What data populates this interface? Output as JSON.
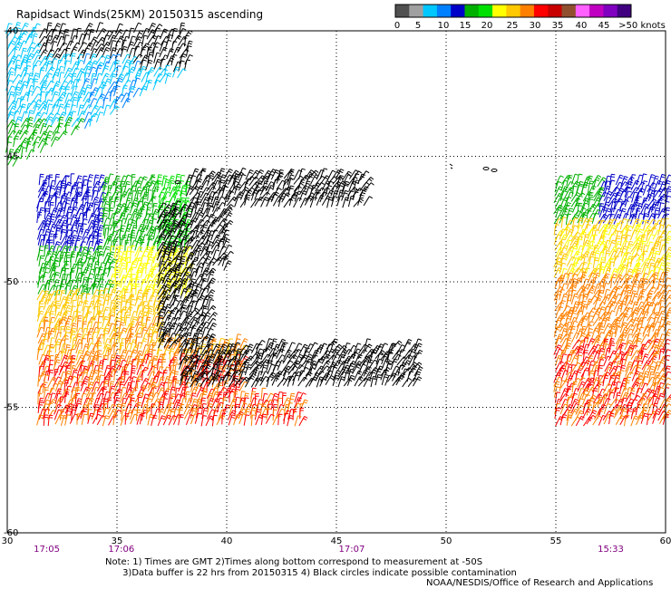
{
  "title": "Rapidsact Winds(25KM) 20150315 ascending",
  "legend": {
    "labels": [
      "0",
      "5",
      "10",
      "15",
      "20",
      "25",
      "30",
      "35",
      "40",
      "45",
      ">50 knots"
    ],
    "colors": [
      "#505050",
      "#a0a0a0",
      "#00c8ff",
      "#0080ff",
      "#0000c8",
      "#00b000",
      "#00e000",
      "#ffff00",
      "#ffc800",
      "#ff8000",
      "#ff0000",
      "#c80000",
      "#905030",
      "#ff60ff",
      "#c000c0",
      "#8000c0",
      "#400080"
    ]
  },
  "map": {
    "lon_ticks": [
      "30",
      "35",
      "40",
      "45",
      "50",
      "55",
      "60"
    ],
    "lat_ticks": [
      "-40",
      "-45",
      "-50",
      "-55",
      "-60"
    ],
    "lon_range": [
      30,
      60
    ],
    "lat_range": [
      -40,
      -60
    ],
    "gridlines": true
  },
  "times": [
    {
      "label": "17:05",
      "lon": 31.8
    },
    {
      "label": "17:06",
      "lon": 35.2
    },
    {
      "label": "17:07",
      "lon": 45.7
    },
    {
      "label": "15:33",
      "lon": 57.5
    }
  ],
  "notes": [
    "Note: 1) Times are GMT 2)Times along bottom correspond to measurement at -50S",
    "      3)Data buffer is 22 hrs from 20150315 4) Black circles indicate possible contamination"
  ],
  "credit": "NOAA/NESDIS/Office of Research and Applications"
}
